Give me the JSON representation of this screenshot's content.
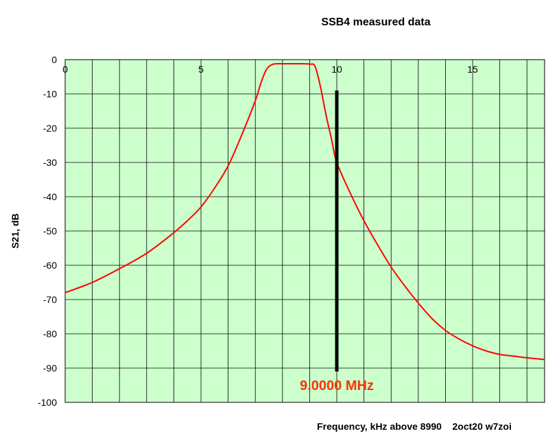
{
  "chart_data": {
    "type": "line",
    "title": "SSB4 measured data",
    "xlabel": "Frequency, kHz above 8990    2oct20 w7zoi",
    "ylabel": "S21, dB",
    "xlim": [
      0,
      17.65
    ],
    "ylim": [
      -100,
      0
    ],
    "x_ticks": [
      0,
      5,
      10,
      15
    ],
    "x_tick_labels": [
      "0",
      "5",
      "10",
      "15"
    ],
    "y_ticks": [
      0,
      -10,
      -20,
      -30,
      -40,
      -50,
      -60,
      -70,
      -80,
      -90,
      -100
    ],
    "y_tick_labels": [
      "0",
      "-10",
      "-20",
      "-30",
      "-40",
      "-50",
      "-60",
      "-70",
      "-80",
      "-90",
      "-100"
    ],
    "grid": true,
    "background_color": "#ccffcc",
    "series": [
      {
        "color": "#ff0000",
        "x": [
          0,
          1,
          2,
          3,
          4,
          4.5,
          5,
          5.5,
          6,
          6.5,
          7,
          7.2,
          7.4,
          7.6,
          7.8,
          8,
          8.5,
          9,
          9.2,
          9.4,
          9.6,
          9.8,
          10,
          10.5,
          11,
          11.5,
          12,
          12.5,
          13,
          13.5,
          14,
          14.5,
          15,
          15.5,
          16,
          16.5,
          17,
          17.65
        ],
        "y": [
          -68,
          -65,
          -61,
          -56.5,
          -50.5,
          -47,
          -43,
          -37.5,
          -31,
          -22,
          -12,
          -7,
          -3,
          -1.5,
          -1.2,
          -1.2,
          -1.2,
          -1.3,
          -2,
          -8,
          -16,
          -23,
          -30,
          -39,
          -47,
          -54,
          -60.5,
          -66,
          -71,
          -75.5,
          -79,
          -81.5,
          -83.5,
          -85,
          -86,
          -86.5,
          -87,
          -87.5
        ]
      }
    ],
    "marker_line": {
      "x": 10,
      "y_from": -9,
      "y_to": -91,
      "color": "#000000"
    },
    "annotation": {
      "text": "9.0000 MHz",
      "x": 10,
      "y": -95,
      "color": "#ff3300"
    }
  }
}
